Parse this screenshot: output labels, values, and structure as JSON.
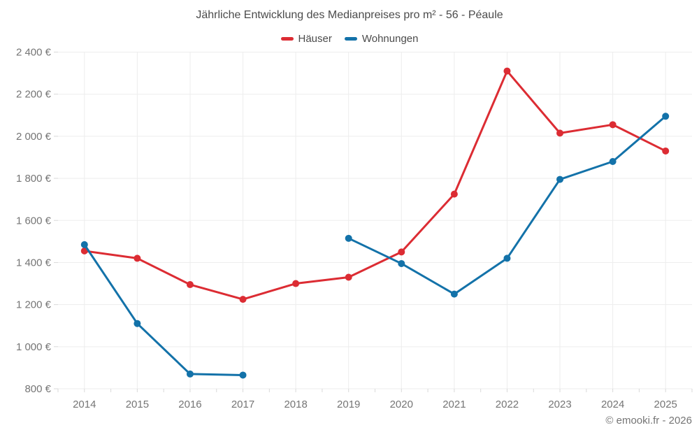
{
  "page": {
    "title": "Jährliche Entwicklung des Medianpreises pro m² - 56 - Péaule",
    "footer": "© emooki.fr - 2026"
  },
  "legend": {
    "items": [
      {
        "label": "Häuser",
        "color": "#dc2c33"
      },
      {
        "label": "Wohnungen",
        "color": "#1372a9"
      }
    ]
  },
  "colors": {
    "grid": "#ededed",
    "tick": "#d9d9d9",
    "axis_text": "#757575",
    "title_text": "#4b4b4b"
  },
  "chart_data": {
    "type": "line",
    "title": "Jährliche Entwicklung des Medianpreises pro m² - 56 - Péaule",
    "categories": [
      "2014",
      "2015",
      "2016",
      "2017",
      "2018",
      "2019",
      "2020",
      "2021",
      "2022",
      "2023",
      "2024",
      "2025"
    ],
    "series": [
      {
        "name": "Häuser",
        "color": "#dc2c33",
        "values": [
          1455,
          1420,
          1295,
          1225,
          1300,
          1330,
          1450,
          1725,
          2310,
          2015,
          2055,
          1930
        ]
      },
      {
        "name": "Wohnungen",
        "color": "#1372a9",
        "values": [
          1485,
          1110,
          870,
          865,
          null,
          1515,
          1395,
          1250,
          1420,
          1795,
          1880,
          2095
        ]
      }
    ],
    "xlabel": "",
    "ylabel": "",
    "ylim": [
      800,
      2400
    ],
    "y_tick_step": 200,
    "y_ticks": [
      {
        "value": 800,
        "label": "800 €"
      },
      {
        "value": 1000,
        "label": "1 000 €"
      },
      {
        "value": 1200,
        "label": "1 200 €"
      },
      {
        "value": 1400,
        "label": "1 400 €"
      },
      {
        "value": 1600,
        "label": "1 600 €"
      },
      {
        "value": 1800,
        "label": "1 800 €"
      },
      {
        "value": 2000,
        "label": "2 000 €"
      },
      {
        "value": 2200,
        "label": "2 200 €"
      },
      {
        "value": 2400,
        "label": "2 400 €"
      }
    ],
    "grid": true,
    "legend_position": "top",
    "point_radius": 5,
    "line_width": 3
  }
}
